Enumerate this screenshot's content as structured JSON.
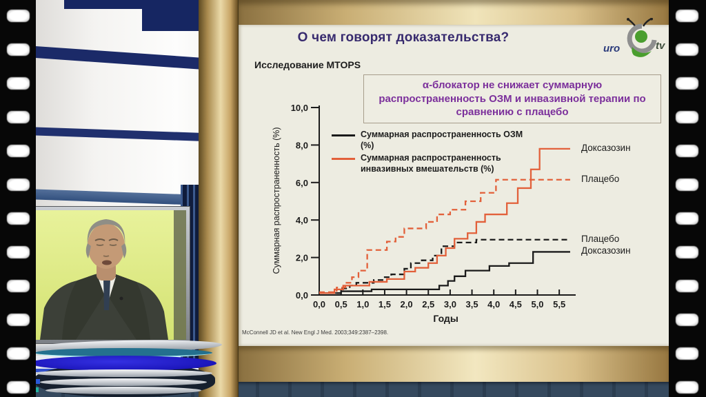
{
  "slide": {
    "title": "О чем говорят доказательства?",
    "subtitle": "Исследование MTOPS",
    "info_box": "α-блокатор не снижает суммарную распространенность ОЗМ и инвазивной терапии по сравнению с плацебо",
    "citation": "McConnell JD et al. New Engl J Med. 2003;349:2387–2398.",
    "logo": {
      "uro": "uro",
      "tv": "tv"
    }
  },
  "chart_data": {
    "type": "line",
    "subtype": "step-cumulative-incidence",
    "title": "",
    "xlabel": "Годы",
    "ylabel": "Суммарная распространенность (%)",
    "xlim": [
      0,
      5.8
    ],
    "ylim": [
      0,
      10.3
    ],
    "grid": false,
    "legend_position": "top-left-inside",
    "x_ticks": [
      0,
      0.5,
      1,
      1.5,
      2,
      2.5,
      3,
      3.5,
      4,
      4.5,
      5,
      5.5
    ],
    "y_ticks": [
      0,
      2,
      4,
      6,
      8,
      10
    ],
    "decimal_separator": ",",
    "legend": [
      {
        "label": "Суммарная распространенность ОЗМ (%)",
        "color": "#1a1a1a",
        "style": "solid"
      },
      {
        "label": "Суммарная распространенность инвазивных вмешательств (%)",
        "color": "#e2603a",
        "style": "solid"
      }
    ],
    "series": [
      {
        "name": "Доксазозин — суммарная распространенность ОЗМ (%)",
        "right_label": "Доксазозин",
        "color": "#1a1a1a",
        "style": "solid",
        "points": [
          [
            0,
            0.1
          ],
          [
            0.5,
            0.2
          ],
          [
            1.2,
            0.3
          ],
          [
            2.75,
            0.5
          ],
          [
            2.95,
            0.75
          ],
          [
            3.1,
            1.0
          ],
          [
            3.35,
            1.3
          ],
          [
            3.9,
            1.55
          ],
          [
            4.35,
            1.7
          ],
          [
            4.9,
            2.3
          ],
          [
            5.75,
            2.3
          ]
        ]
      },
      {
        "name": "Плацебо — суммарная распространенность ОЗМ (%)",
        "right_label": "Плацебо",
        "color": "#1a1a1a",
        "style": "dashed",
        "points": [
          [
            0,
            0.1
          ],
          [
            0.5,
            0.35
          ],
          [
            0.7,
            0.5
          ],
          [
            0.85,
            0.65
          ],
          [
            1.25,
            0.8
          ],
          [
            1.45,
            0.95
          ],
          [
            1.65,
            1.1
          ],
          [
            1.95,
            1.4
          ],
          [
            2.1,
            1.7
          ],
          [
            2.35,
            1.85
          ],
          [
            2.6,
            2.1
          ],
          [
            2.8,
            2.6
          ],
          [
            3.1,
            2.8
          ],
          [
            3.6,
            2.95
          ],
          [
            5.75,
            2.95
          ]
        ]
      },
      {
        "name": "Плацебо — суммарная распространенность инвазивных вмешательств (%)",
        "right_label": "Плацебо",
        "color": "#e2603a",
        "style": "dashed",
        "points": [
          [
            0,
            0.15
          ],
          [
            0.4,
            0.4
          ],
          [
            0.6,
            0.65
          ],
          [
            0.75,
            0.95
          ],
          [
            0.9,
            1.3
          ],
          [
            1.1,
            2.4
          ],
          [
            1.55,
            2.85
          ],
          [
            1.75,
            3.1
          ],
          [
            1.95,
            3.55
          ],
          [
            2.45,
            3.9
          ],
          [
            2.7,
            4.3
          ],
          [
            3.0,
            4.55
          ],
          [
            3.35,
            5.0
          ],
          [
            3.7,
            5.45
          ],
          [
            4.05,
            6.15
          ],
          [
            5.75,
            6.15
          ]
        ]
      },
      {
        "name": "Доксазозин — суммарная распространенность инвазивных вмешательств (%)",
        "right_label": "Доксазозин",
        "color": "#e2603a",
        "style": "solid",
        "points": [
          [
            0,
            0.1
          ],
          [
            0.35,
            0.3
          ],
          [
            0.55,
            0.5
          ],
          [
            1.15,
            0.7
          ],
          [
            1.55,
            0.85
          ],
          [
            1.95,
            1.25
          ],
          [
            2.2,
            1.45
          ],
          [
            2.5,
            1.7
          ],
          [
            2.7,
            2.1
          ],
          [
            2.9,
            2.5
          ],
          [
            3.1,
            3.0
          ],
          [
            3.4,
            3.3
          ],
          [
            3.6,
            3.9
          ],
          [
            3.8,
            4.3
          ],
          [
            4.3,
            4.9
          ],
          [
            4.55,
            5.7
          ],
          [
            4.85,
            6.7
          ],
          [
            5.05,
            7.8
          ],
          [
            5.75,
            7.8
          ]
        ]
      }
    ]
  },
  "colors": {
    "accent_orange": "#e2603a",
    "ink": "#1a1a1a",
    "title_purple": "#372a6e",
    "box_purple": "#7b2f9b",
    "studio_navy": "#1b2a68",
    "gold_light": "#ecdcab",
    "slide_bg": "#edece1",
    "logo_green": "#4a9e2e"
  }
}
